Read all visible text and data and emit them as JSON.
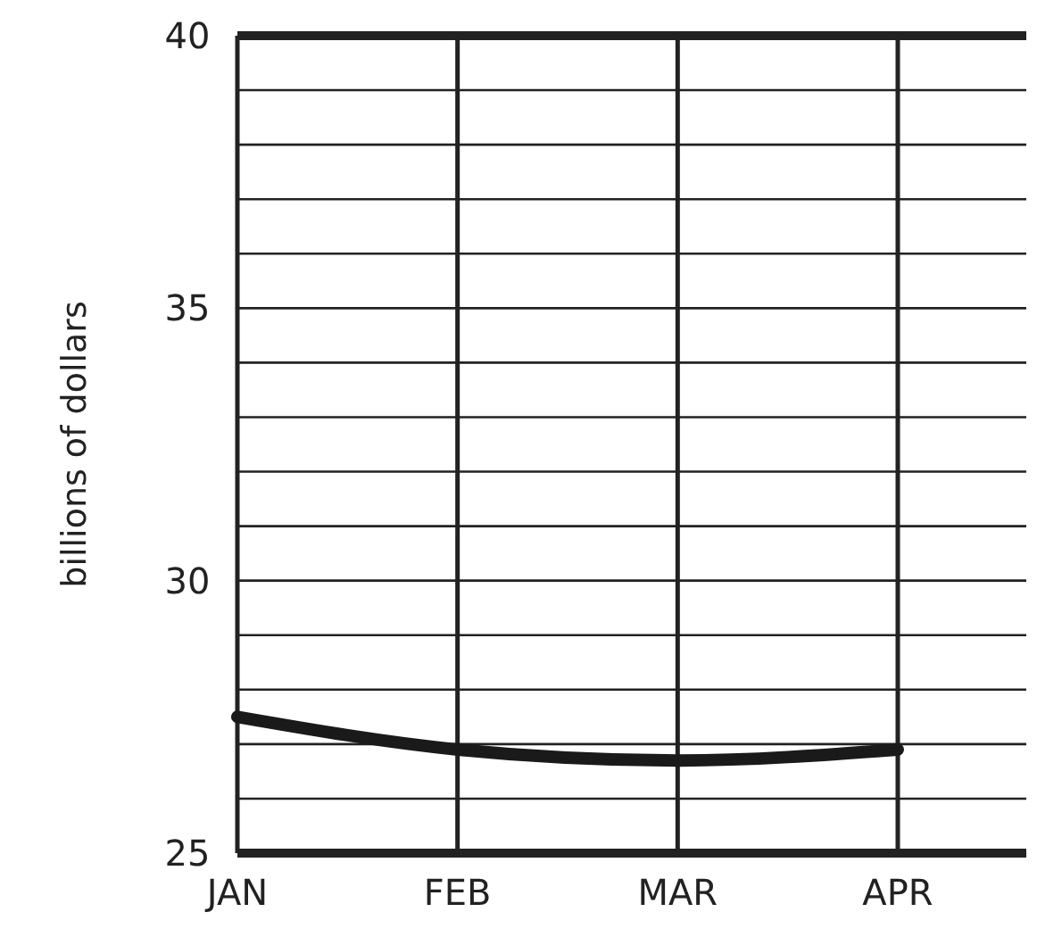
{
  "chart_data": {
    "type": "line",
    "ylabel": "billions of dollars",
    "categories": [
      "JAN",
      "FEB",
      "MAR",
      "APR"
    ],
    "series": [
      {
        "color": "#1a1a1a",
        "values": [
          27.5,
          26.9,
          26.7,
          26.9
        ]
      }
    ],
    "ylim": [
      25,
      40
    ],
    "yticks": [
      25,
      {
        "value": 26,
        "label": null
      },
      {
        "value": 27,
        "label": null
      },
      {
        "value": 28,
        "label": null
      },
      {
        "value": 29,
        "label": null
      },
      30,
      {
        "value": 31,
        "label": null
      },
      {
        "value": 32,
        "label": null
      },
      {
        "value": 33,
        "label": null
      },
      {
        "value": 34,
        "label": null
      },
      35,
      {
        "value": 36,
        "label": null
      },
      {
        "value": 37,
        "label": null
      },
      {
        "value": 38,
        "label": null
      },
      {
        "value": 39,
        "label": null
      },
      40
    ],
    "grid": true,
    "marker": "none",
    "line_style": "solid"
  }
}
